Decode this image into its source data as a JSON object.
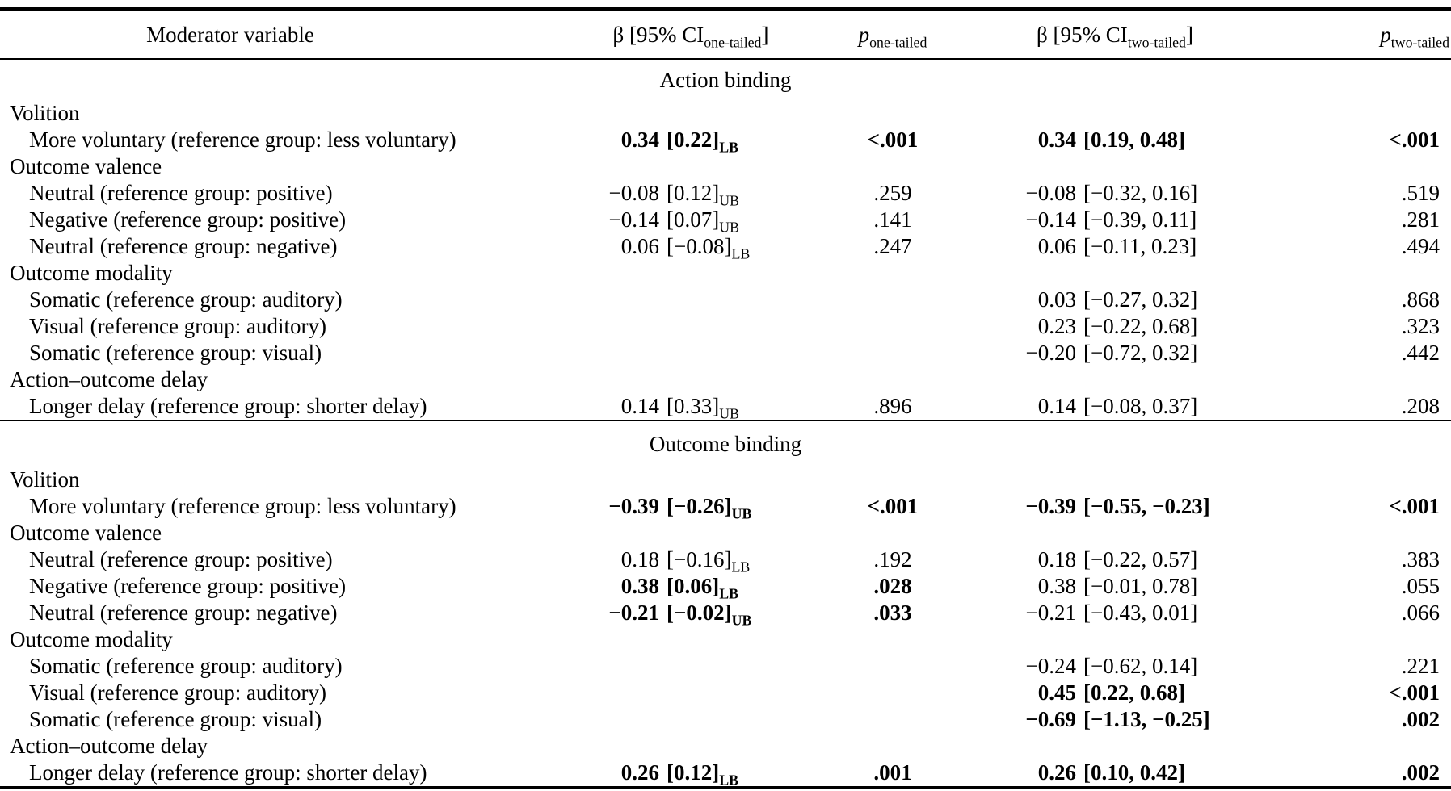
{
  "header": {
    "col1": "Moderator variable",
    "col2": {
      "pre": "β [95% CI",
      "sub": "one-tailed",
      "post": "]"
    },
    "col3": {
      "pre": "p",
      "sub": "one-tailed"
    },
    "col4": {
      "pre": "β [95% CI",
      "sub": "two-tailed",
      "post": "]"
    },
    "col5": {
      "pre": "p",
      "sub": "two-tailed"
    }
  },
  "sections": [
    {
      "title": "Action binding",
      "rows": [
        {
          "type": "group",
          "label": "Volition"
        },
        {
          "type": "item",
          "label": "More voluntary (reference group: less voluntary)",
          "ot": {
            "beta": "0.34",
            "ci": "[0.22]",
            "sub": "LB",
            "bold": true
          },
          "pt1": {
            "v": "<.001",
            "bold": true
          },
          "tt": {
            "beta": "0.34",
            "ci": "[0.19, 0.48]",
            "bold": true
          },
          "pt2": {
            "v": "<.001",
            "bold": true
          }
        },
        {
          "type": "group",
          "label": "Outcome valence"
        },
        {
          "type": "item",
          "label": "Neutral (reference group: positive)",
          "ot": {
            "beta": "−0.08",
            "ci": "[0.12]",
            "sub": "UB"
          },
          "pt1": {
            "v": ".259"
          },
          "tt": {
            "beta": "−0.08",
            "ci": "[−0.32, 0.16]"
          },
          "pt2": {
            "v": ".519"
          }
        },
        {
          "type": "item",
          "label": "Negative (reference group: positive)",
          "ot": {
            "beta": "−0.14",
            "ci": "[0.07]",
            "sub": "UB"
          },
          "pt1": {
            "v": ".141"
          },
          "tt": {
            "beta": "−0.14",
            "ci": "[−0.39, 0.11]"
          },
          "pt2": {
            "v": ".281"
          }
        },
        {
          "type": "item",
          "label": "Neutral (reference group: negative)",
          "ot": {
            "beta": "0.06",
            "ci": "[−0.08]",
            "sub": "LB"
          },
          "pt1": {
            "v": ".247"
          },
          "tt": {
            "beta": "0.06",
            "ci": "[−0.11, 0.23]"
          },
          "pt2": {
            "v": ".494"
          }
        },
        {
          "type": "group",
          "label": "Outcome modality"
        },
        {
          "type": "item",
          "label": "Somatic (reference group: auditory)",
          "tt": {
            "beta": "0.03",
            "ci": "[−0.27, 0.32]"
          },
          "pt2": {
            "v": ".868"
          }
        },
        {
          "type": "item",
          "label": "Visual (reference group: auditory)",
          "tt": {
            "beta": "0.23",
            "ci": "[−0.22, 0.68]"
          },
          "pt2": {
            "v": ".323"
          }
        },
        {
          "type": "item",
          "label": "Somatic (reference group: visual)",
          "tt": {
            "beta": "−0.20",
            "ci": "[−0.72, 0.32]"
          },
          "pt2": {
            "v": ".442"
          }
        },
        {
          "type": "group",
          "label": "Action–outcome delay"
        },
        {
          "type": "item",
          "label": "Longer delay (reference group: shorter delay)",
          "ot": {
            "beta": "0.14",
            "ci": "[0.33]",
            "sub": "UB"
          },
          "pt1": {
            "v": ".896"
          },
          "tt": {
            "beta": "0.14",
            "ci": "[−0.08, 0.37]"
          },
          "pt2": {
            "v": ".208"
          }
        }
      ]
    },
    {
      "title": "Outcome binding",
      "rows": [
        {
          "type": "group",
          "label": "Volition"
        },
        {
          "type": "item",
          "label": "More voluntary (reference group: less voluntary)",
          "ot": {
            "beta": "−0.39",
            "ci": "[−0.26]",
            "sub": "UB",
            "bold": true
          },
          "pt1": {
            "v": "<.001",
            "bold": true
          },
          "tt": {
            "beta": "−0.39",
            "ci": "[−0.55, −0.23]",
            "bold": true
          },
          "pt2": {
            "v": "<.001",
            "bold": true
          }
        },
        {
          "type": "group",
          "label": "Outcome valence"
        },
        {
          "type": "item",
          "label": "Neutral (reference group: positive)",
          "ot": {
            "beta": "0.18",
            "ci": "[−0.16]",
            "sub": "LB"
          },
          "pt1": {
            "v": ".192"
          },
          "tt": {
            "beta": "0.18",
            "ci": "[−0.22, 0.57]"
          },
          "pt2": {
            "v": ".383"
          }
        },
        {
          "type": "item",
          "label": "Negative (reference group: positive)",
          "ot": {
            "beta": "0.38",
            "ci": "[0.06]",
            "sub": "LB",
            "bold": true
          },
          "pt1": {
            "v": ".028",
            "bold": true
          },
          "tt": {
            "beta": "0.38",
            "ci": "[−0.01, 0.78]"
          },
          "pt2": {
            "v": ".055"
          }
        },
        {
          "type": "item",
          "label": "Neutral (reference group: negative)",
          "ot": {
            "beta": "−0.21",
            "ci": "[−0.02]",
            "sub": "UB",
            "bold": true
          },
          "pt1": {
            "v": ".033",
            "bold": true
          },
          "tt": {
            "beta": "−0.21",
            "ci": "[−0.43, 0.01]"
          },
          "pt2": {
            "v": ".066"
          }
        },
        {
          "type": "group",
          "label": "Outcome modality"
        },
        {
          "type": "item",
          "label": "Somatic (reference group: auditory)",
          "tt": {
            "beta": "−0.24",
            "ci": "[−0.62, 0.14]"
          },
          "pt2": {
            "v": ".221"
          }
        },
        {
          "type": "item",
          "label": "Visual (reference group: auditory)",
          "tt": {
            "beta": "0.45",
            "ci": "[0.22, 0.68]",
            "bold": true
          },
          "pt2": {
            "v": "<.001",
            "bold": true
          }
        },
        {
          "type": "item",
          "label": "Somatic (reference group: visual)",
          "tt": {
            "beta": "−0.69",
            "ci": "[−1.13, −0.25]",
            "bold": true
          },
          "pt2": {
            "v": ".002",
            "bold": true
          }
        },
        {
          "type": "group",
          "label": "Action–outcome delay"
        },
        {
          "type": "item",
          "label": "Longer delay (reference group: shorter delay)",
          "ot": {
            "beta": "0.26",
            "ci": "[0.12]",
            "sub": "LB",
            "bold": true
          },
          "pt1": {
            "v": ".001",
            "bold": true
          },
          "tt": {
            "beta": "0.26",
            "ci": "[0.10, 0.42]",
            "bold": true
          },
          "pt2": {
            "v": ".002",
            "bold": true
          }
        }
      ]
    }
  ]
}
